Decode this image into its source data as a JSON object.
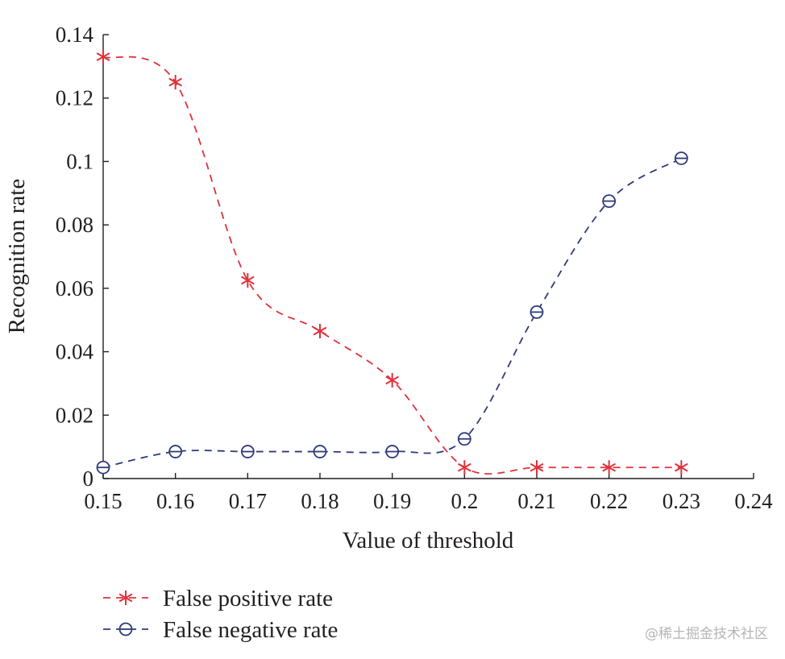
{
  "chart_data": {
    "type": "line",
    "title": "",
    "xlabel": "Value of threshold",
    "ylabel": "Recognition rate",
    "xlim": [
      0.15,
      0.24
    ],
    "ylim": [
      0,
      0.14
    ],
    "xticks": [
      0.15,
      0.16,
      0.17,
      0.18,
      0.19,
      0.2,
      0.21,
      0.22,
      0.23,
      0.24
    ],
    "xtick_labels": [
      "0.15",
      "0.16",
      "0.17",
      "0.18",
      "0.19",
      "0.2",
      "0.21",
      "0.22",
      "0.23",
      "0.24"
    ],
    "yticks": [
      0,
      0.02,
      0.04,
      0.06,
      0.08,
      0.1,
      0.12,
      0.14
    ],
    "ytick_labels": [
      "0",
      "0.02",
      "0.04",
      "0.06",
      "0.08",
      "0.1",
      "0.12",
      "0.14"
    ],
    "grid": false,
    "legend_position": "bottom-left",
    "x": [
      0.15,
      0.16,
      0.17,
      0.18,
      0.19,
      0.2,
      0.21,
      0.22,
      0.23
    ],
    "series": [
      {
        "name": "False positive rate",
        "color": "#e0313a",
        "marker": "asterisk",
        "line_style": "dashed",
        "values": [
          0.133,
          0.125,
          0.0625,
          0.0465,
          0.031,
          0.0035,
          0.0035,
          0.0035,
          0.0035
        ]
      },
      {
        "name": "False negative rate",
        "color": "#2e3a7a",
        "marker": "circle-bar",
        "line_style": "dashed",
        "values": [
          0.0035,
          0.0085,
          0.0085,
          0.0085,
          0.0085,
          0.0125,
          0.0525,
          0.0875,
          0.101
        ]
      }
    ]
  },
  "watermark": "@稀土掘金技术社区"
}
